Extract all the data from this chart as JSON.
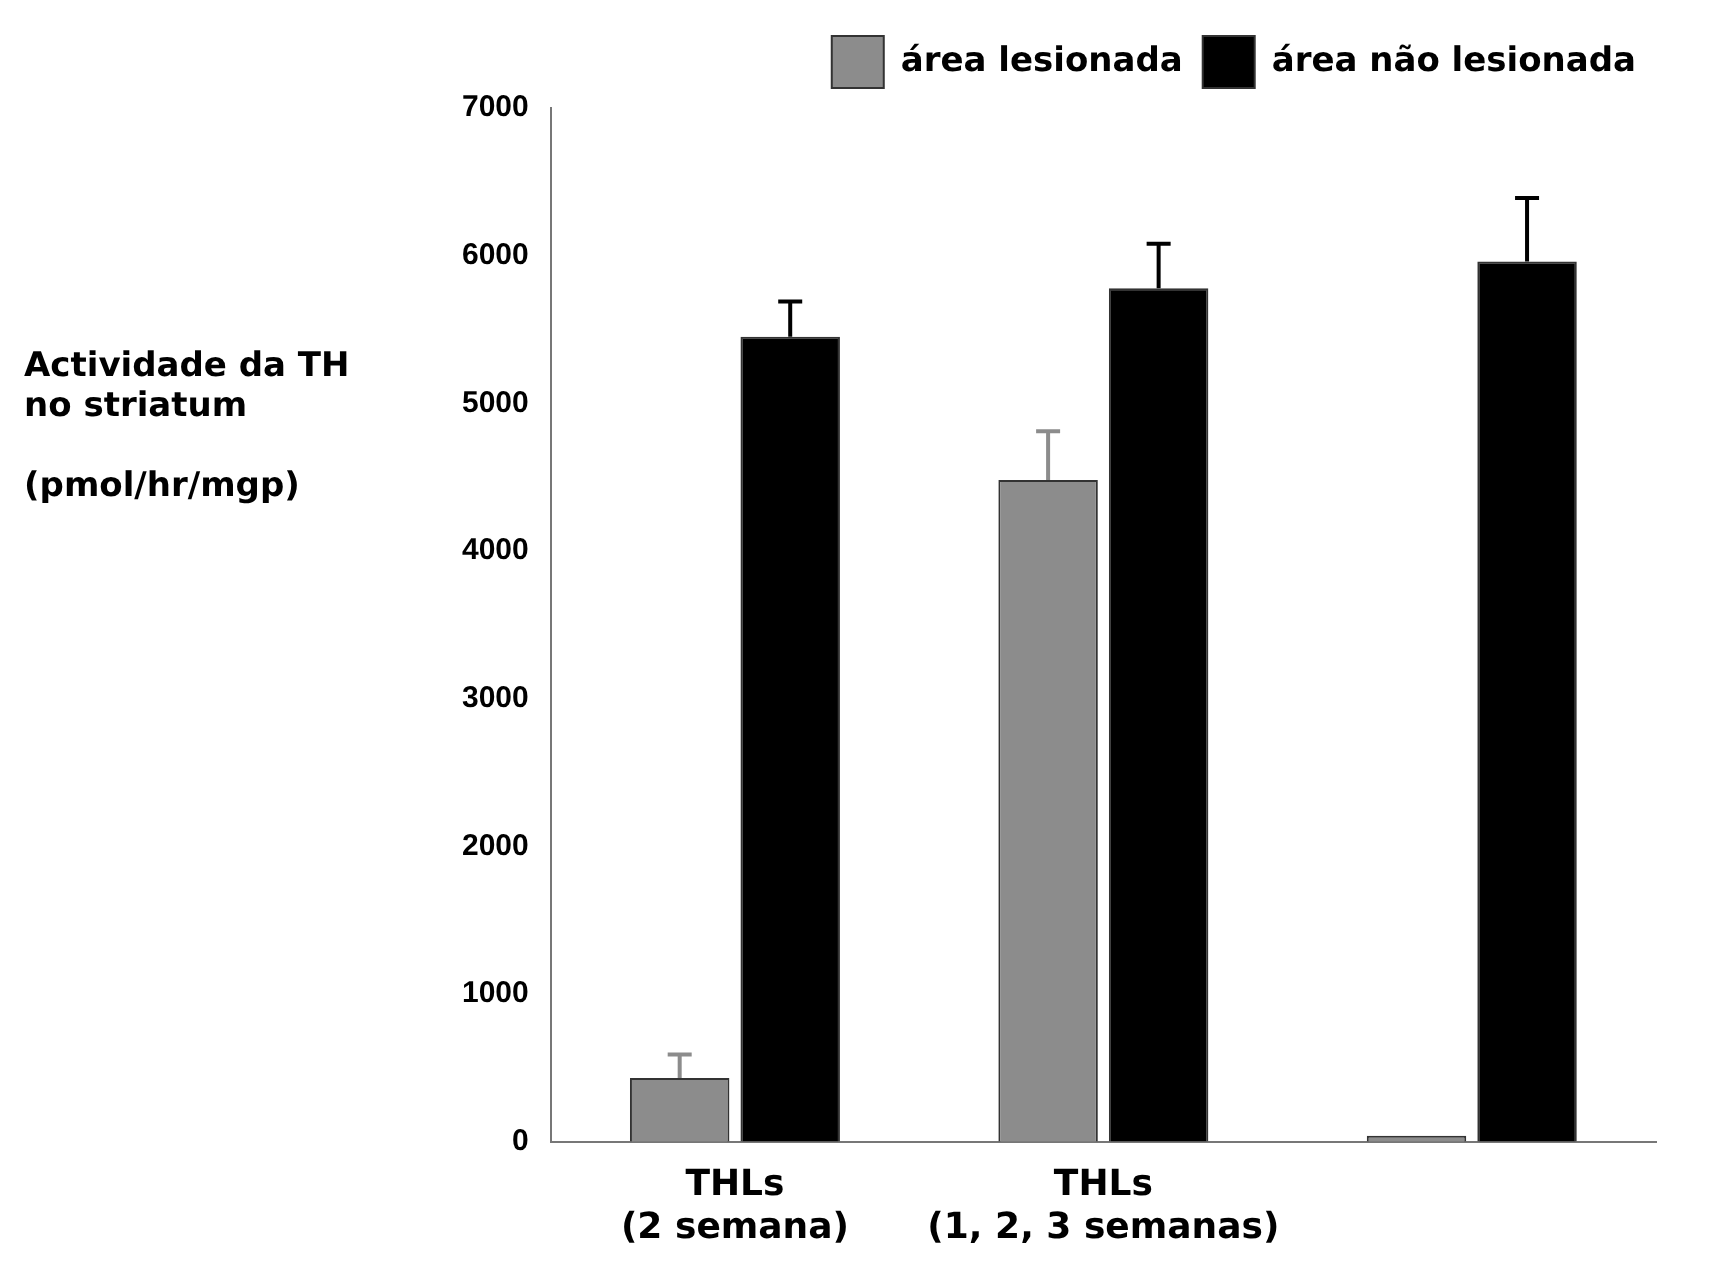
{
  "chart_data": {
    "type": "bar",
    "ylabel": "Actividade da TH\nno striatum\n\n(pmol/hr/mgp)",
    "categories": [
      "THLs\n(2 semana)",
      "THLs\n(1, 2, 3 semanas)",
      null
    ],
    "series": [
      {
        "name": "área lesionada",
        "color": "#8c8c8c",
        "values": [
          430,
          4480,
          40
        ],
        "errors": [
          160,
          330,
          null
        ]
      },
      {
        "name": "área não lesionada",
        "color": "#000000",
        "values": [
          5450,
          5780,
          5960
        ],
        "errors": [
          240,
          300,
          430
        ]
      }
    ],
    "ylim": [
      0,
      7000
    ],
    "yticks": [
      0,
      1000,
      2000,
      3000,
      4000,
      5000,
      6000,
      7000
    ],
    "grid": false,
    "legend": "top right"
  }
}
